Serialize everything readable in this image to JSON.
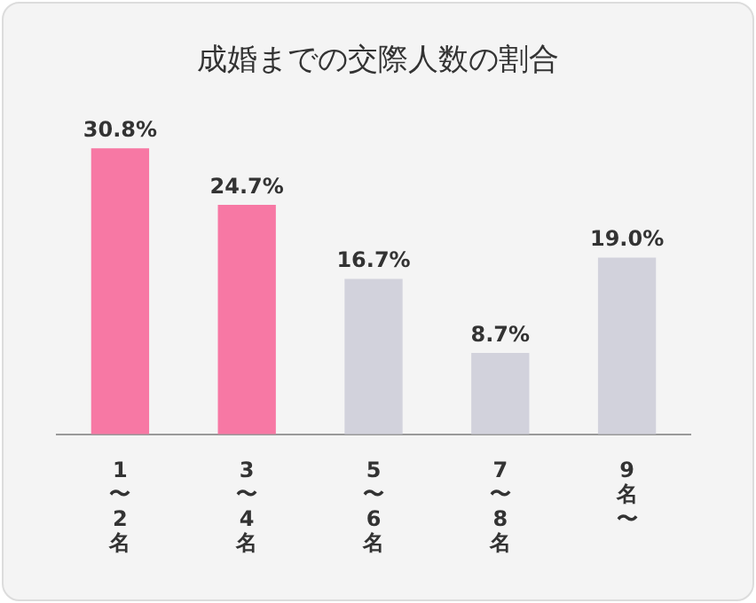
{
  "chart_data": {
    "type": "bar",
    "title": "成婚までの交際人数の割合",
    "categories": [
      "1〜2名",
      "3〜4名",
      "5〜6名",
      "7〜8名",
      "9名〜"
    ],
    "values": [
      30.8,
      24.7,
      16.7,
      8.7,
      19.0
    ],
    "colors": [
      "#f778a4",
      "#f778a4",
      "#d2d2dc",
      "#d2d2dc",
      "#d2d2dc"
    ],
    "value_labels": [
      "30.8%",
      "24.7%",
      "16.7%",
      "8.7%",
      "19.0%"
    ],
    "grid": false,
    "legend": false
  }
}
